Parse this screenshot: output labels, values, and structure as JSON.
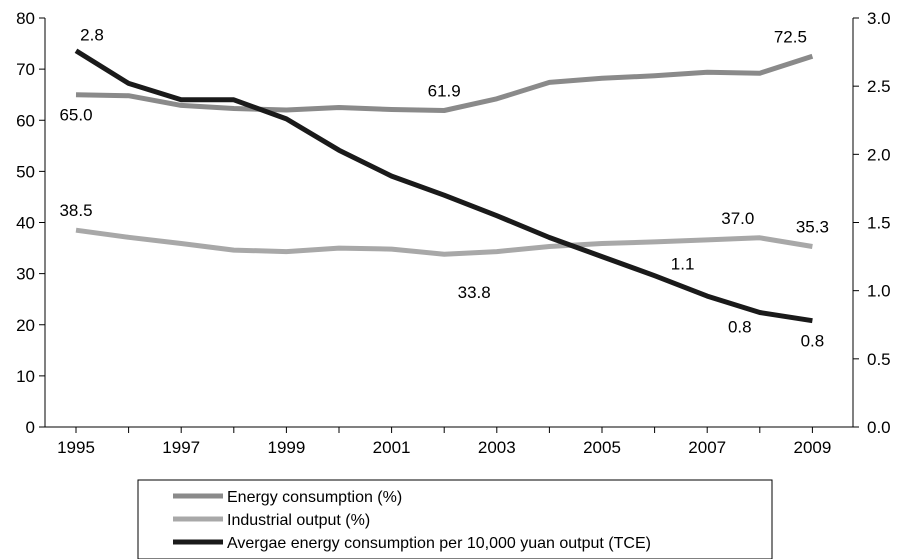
{
  "chart_data": {
    "type": "line",
    "x": [
      1995,
      1996,
      1997,
      1998,
      1999,
      2000,
      2001,
      2002,
      2003,
      2004,
      2005,
      2006,
      2007,
      2008,
      2009
    ],
    "x_tick_labels": [
      "1995",
      "1997",
      "1999",
      "2001",
      "2003",
      "2005",
      "2007",
      "2009"
    ],
    "y_left": {
      "ylim": [
        0,
        80
      ],
      "ticks": [
        "0",
        "10",
        "20",
        "30",
        "40",
        "50",
        "60",
        "70",
        "80"
      ]
    },
    "y_right": {
      "ylim": [
        0,
        3.0
      ],
      "ticks": [
        "0.0",
        "0.5",
        "1.0",
        "1.5",
        "2.0",
        "2.5",
        "3.0"
      ]
    },
    "grid": false,
    "legend_position": "bottom",
    "series": [
      {
        "name": "Energy consumption (%)",
        "axis": "left",
        "color": "#8a8a8a",
        "values": [
          65.0,
          64.8,
          62.9,
          62.3,
          62.0,
          62.5,
          62.1,
          61.9,
          64.2,
          67.4,
          68.2,
          68.7,
          69.4,
          69.2,
          72.5
        ]
      },
      {
        "name": "Industrial output (%)",
        "axis": "left",
        "color": "#a8a8a8",
        "values": [
          38.5,
          37.1,
          35.9,
          34.6,
          34.3,
          35.0,
          34.8,
          33.8,
          34.3,
          35.3,
          35.9,
          36.2,
          36.6,
          37.0,
          35.3
        ]
      },
      {
        "name": "Avergae energy consumption per 10,000 yuan output (TCE)",
        "axis": "right",
        "color": "#1a1a1a",
        "values": [
          2.76,
          2.52,
          2.4,
          2.4,
          2.26,
          2.03,
          1.84,
          1.7,
          1.55,
          1.39,
          1.25,
          1.11,
          0.96,
          0.84,
          0.78
        ]
      }
    ],
    "annotations": [
      {
        "series": 0,
        "index": 0,
        "text": "65.0",
        "pos": "below"
      },
      {
        "series": 0,
        "index": 7,
        "text": "61.9",
        "pos": "above"
      },
      {
        "series": 0,
        "index": 14,
        "text": "72.5",
        "pos": "above-left"
      },
      {
        "series": 1,
        "index": 0,
        "text": "38.5",
        "pos": "above"
      },
      {
        "series": 1,
        "index": 7,
        "text": "33.8",
        "pos": "far-below"
      },
      {
        "series": 1,
        "index": 13,
        "text": "37.0",
        "pos": "above-left"
      },
      {
        "series": 1,
        "index": 14,
        "text": "35.3",
        "pos": "above"
      },
      {
        "series": 2,
        "index": 0,
        "text": "2.8",
        "pos": "above-right"
      },
      {
        "series": 2,
        "index": 11,
        "text": "1.1",
        "pos": "right-above"
      },
      {
        "series": 2,
        "index": 13,
        "text": "0.8",
        "pos": "below-left"
      },
      {
        "series": 2,
        "index": 14,
        "text": "0.8",
        "pos": "below"
      }
    ]
  }
}
